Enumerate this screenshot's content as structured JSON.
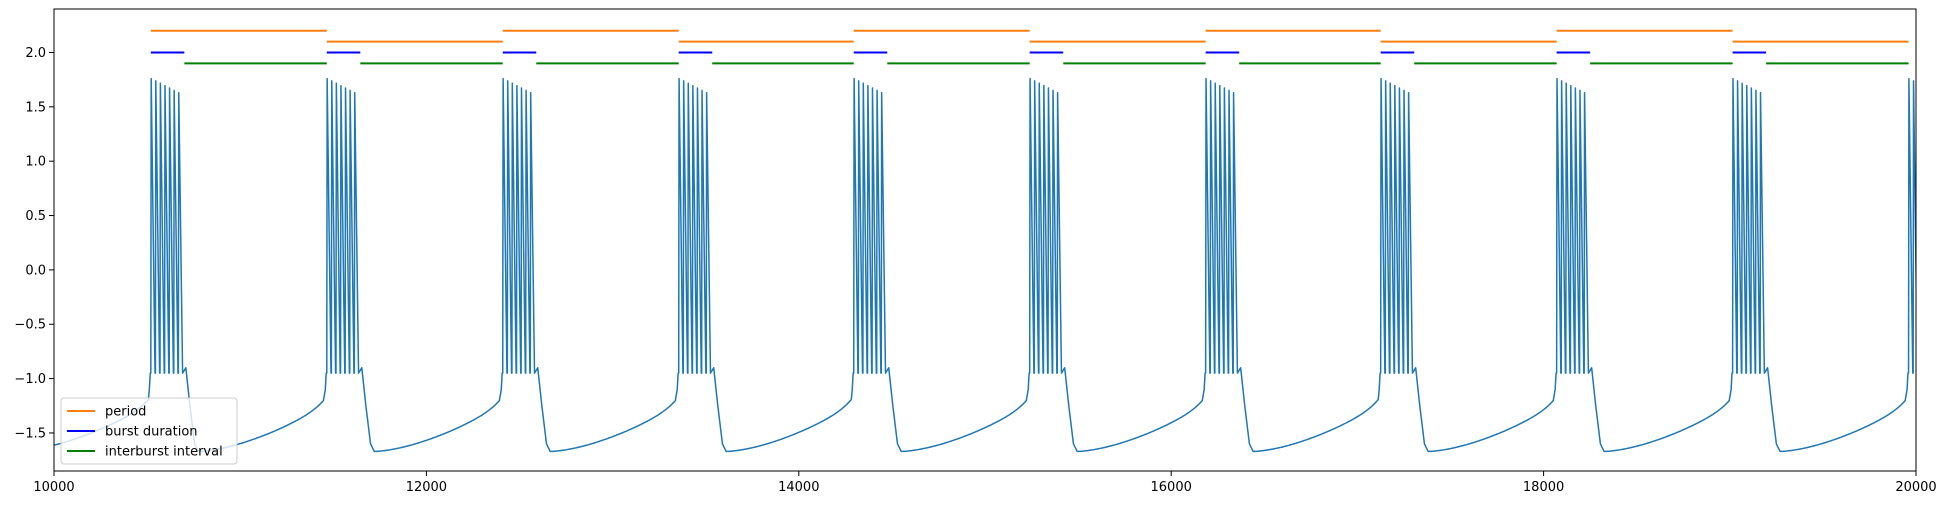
{
  "chart_data": {
    "type": "line",
    "title": "",
    "xlabel": "",
    "ylabel": "",
    "xlim": [
      10000,
      20000
    ],
    "ylim": [
      -1.85,
      2.4
    ],
    "grid": false,
    "legend_position": "lower-left",
    "x_ticks": [
      {
        "value": 10000,
        "label": "10000"
      },
      {
        "value": 12000,
        "label": "12000"
      },
      {
        "value": 14000,
        "label": "14000"
      },
      {
        "value": 16000,
        "label": "16000"
      },
      {
        "value": 18000,
        "label": "18000"
      },
      {
        "value": 20000,
        "label": "20000"
      }
    ],
    "y_ticks": [
      {
        "value": -1.5,
        "label": "−1.5"
      },
      {
        "value": -1.0,
        "label": "−1.0"
      },
      {
        "value": -0.5,
        "label": "−0.5"
      },
      {
        "value": 0.0,
        "label": "0.0"
      },
      {
        "value": 0.5,
        "label": "0.5"
      },
      {
        "value": 1.0,
        "label": "1.0"
      },
      {
        "value": 1.5,
        "label": "1.5"
      },
      {
        "value": 2.0,
        "label": "2.0"
      }
    ],
    "voltage_trace": {
      "color": "#1f77b4",
      "burst_onsets": [
        10520,
        11465,
        12410,
        13355,
        14295,
        15240,
        16185,
        17125,
        18070,
        19015,
        19960
      ],
      "burst_duration": 180,
      "spikes_per_burst": 7,
      "spike_peak": 1.76,
      "spike_peak_last": 1.63,
      "plateau": -0.95,
      "hyperpolarized_min": -1.67,
      "pre_burst_level": -1.25
    },
    "series": [
      {
        "name": "period",
        "color": "#ff7f0e",
        "segments": [
          {
            "x0": 10520,
            "x1": 11465,
            "y": 2.2
          },
          {
            "x0": 11465,
            "x1": 12410,
            "y": 2.1
          },
          {
            "x0": 12410,
            "x1": 13355,
            "y": 2.2
          },
          {
            "x0": 13355,
            "x1": 14295,
            "y": 2.1
          },
          {
            "x0": 14295,
            "x1": 15240,
            "y": 2.2
          },
          {
            "x0": 15240,
            "x1": 16185,
            "y": 2.1
          },
          {
            "x0": 16185,
            "x1": 17125,
            "y": 2.2
          },
          {
            "x0": 17125,
            "x1": 18070,
            "y": 2.1
          },
          {
            "x0": 18070,
            "x1": 19015,
            "y": 2.2
          },
          {
            "x0": 19015,
            "x1": 19960,
            "y": 2.1
          }
        ]
      },
      {
        "name": "burst duration",
        "color": "#0000ff",
        "segments": [
          {
            "x0": 10520,
            "x1": 10700,
            "y": 2.0
          },
          {
            "x0": 11465,
            "x1": 11645,
            "y": 2.0
          },
          {
            "x0": 12410,
            "x1": 12590,
            "y": 2.0
          },
          {
            "x0": 13355,
            "x1": 13535,
            "y": 2.0
          },
          {
            "x0": 14295,
            "x1": 14475,
            "y": 2.0
          },
          {
            "x0": 15240,
            "x1": 15420,
            "y": 2.0
          },
          {
            "x0": 16185,
            "x1": 16365,
            "y": 2.0
          },
          {
            "x0": 17125,
            "x1": 17305,
            "y": 2.0
          },
          {
            "x0": 18070,
            "x1": 18250,
            "y": 2.0
          },
          {
            "x0": 19015,
            "x1": 19195,
            "y": 2.0
          }
        ]
      },
      {
        "name": "interburst interval",
        "color": "#008000",
        "segments": [
          {
            "x0": 10700,
            "x1": 11465,
            "y": 1.9
          },
          {
            "x0": 11645,
            "x1": 12410,
            "y": 1.9
          },
          {
            "x0": 12590,
            "x1": 13355,
            "y": 1.9
          },
          {
            "x0": 13535,
            "x1": 14295,
            "y": 1.9
          },
          {
            "x0": 14475,
            "x1": 15240,
            "y": 1.9
          },
          {
            "x0": 15420,
            "x1": 16185,
            "y": 1.9
          },
          {
            "x0": 16365,
            "x1": 17125,
            "y": 1.9
          },
          {
            "x0": 17305,
            "x1": 18070,
            "y": 1.9
          },
          {
            "x0": 18250,
            "x1": 19015,
            "y": 1.9
          },
          {
            "x0": 19195,
            "x1": 19960,
            "y": 1.9
          }
        ]
      }
    ]
  }
}
